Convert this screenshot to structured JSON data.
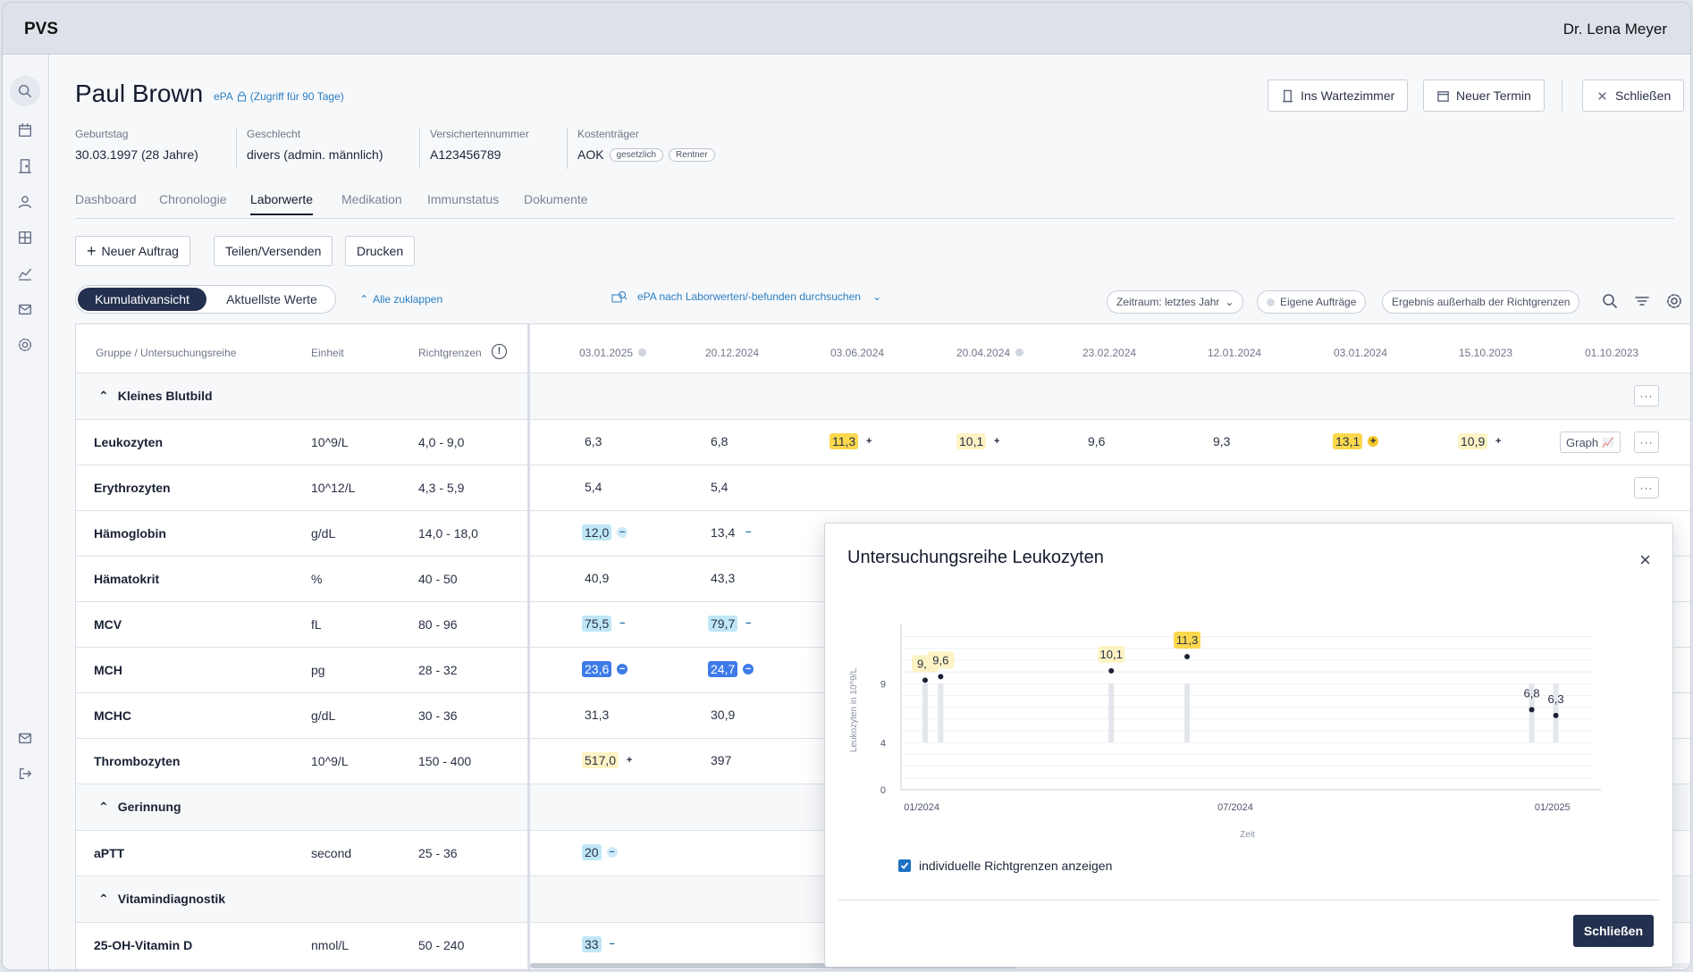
{
  "app": {
    "name": "PVS",
    "user": "Dr. Lena Meyer"
  },
  "patient": {
    "name": "Paul Brown",
    "epa_label": "ePA",
    "epa_access": "(Zugriff für 90 Tage)",
    "fields": [
      {
        "label": "Geburtstag",
        "value": "30.03.1997 (28 Jahre)"
      },
      {
        "label": "Geschlecht",
        "value": "divers (admin. männlich)"
      },
      {
        "label": "Versichertennummer",
        "value": "A123456789"
      },
      {
        "label": "Kostenträger",
        "value": "AOK",
        "badges": [
          "gesetzlich",
          "Rentner"
        ]
      }
    ]
  },
  "header_buttons": {
    "waiting": "Ins Wartezimmer",
    "appointment": "Neuer Termin",
    "close": "Schließen"
  },
  "tabs": [
    "Dashboard",
    "Chronologie",
    "Laborwerte",
    "Medikation",
    "Immunstatus",
    "Dokumente"
  ],
  "active_tab": "Laborwerte",
  "actions": {
    "new_order": "Neuer Auftrag",
    "share": "Teilen/Versenden",
    "print": "Drucken"
  },
  "view_toggle": {
    "cumulative": "Kumulativansicht",
    "latest": "Aktuellste Werte",
    "collapse_all": "Alle zuklappen"
  },
  "epa_search": "ePA nach Laborwerten/-befunden durchsuchen",
  "filters": {
    "period": "Zeitraum: letztes Jahr",
    "own_orders": "Eigene Aufträge",
    "out_of_range": "Ergebnis außerhalb der Richtgrenzen"
  },
  "table": {
    "headers": {
      "group": "Gruppe / Untersuchungsreihe",
      "unit": "Einheit",
      "range": "Richtgrenzen"
    },
    "dates": [
      "03.01.2025",
      "20.12.2024",
      "03.06.2024",
      "20.04.2024",
      "23.02.2024",
      "12.01.2024",
      "03.01.2024",
      "15.10.2023",
      "01.10.2023"
    ],
    "graph_label": "Graph",
    "more_label": "···",
    "groups": {
      "blood": "Kleines Blutbild",
      "coag": "Gerinnung",
      "vit": "Vitamindiagnostik"
    },
    "rows": [
      {
        "name": "Leukozyten",
        "unit": "10^9/L",
        "range": "4,0 - 9,0",
        "v": [
          "6,3",
          "6,8",
          "11,3",
          "10,1",
          "9,6",
          "9,3",
          "13,1",
          "10,9"
        ]
      },
      {
        "name": "Erythrozyten",
        "unit": "10^12/L",
        "range": "4,3 - 5,9",
        "v": [
          "5,4",
          "5,4"
        ]
      },
      {
        "name": "Hämoglobin",
        "unit": "g/dL",
        "range": "14,0 - 18,0",
        "v": [
          "12,0",
          "13,4"
        ]
      },
      {
        "name": "Hämatokrit",
        "unit": "%",
        "range": "40 - 50",
        "v": [
          "40,9",
          "43,3"
        ]
      },
      {
        "name": "MCV",
        "unit": "fL",
        "range": "80 - 96",
        "v": [
          "75,5",
          "79,7"
        ]
      },
      {
        "name": "MCH",
        "unit": "pg",
        "range": "28 - 32",
        "v": [
          "23,6",
          "24,7"
        ]
      },
      {
        "name": "MCHC",
        "unit": "g/dL",
        "range": "30 - 36",
        "v": [
          "31,3",
          "30,9"
        ]
      },
      {
        "name": "Thrombozyten",
        "unit": "10^9/L",
        "range": "150 - 400",
        "v": [
          "517,0",
          "397"
        ]
      },
      {
        "name": "aPTT",
        "unit": "second",
        "range": "25 - 36",
        "v": [
          "20"
        ]
      },
      {
        "name": "25-OH-Vitamin D",
        "unit": "nmol/L",
        "range": "50 - 240",
        "v": [
          "33"
        ]
      }
    ]
  },
  "modal": {
    "title": "Untersuchungsreihe Leukozyten",
    "checkbox": "individuelle Richtgrenzen anzeigen",
    "close": "Schließen"
  },
  "chart_data": {
    "type": "scatter",
    "title": "Untersuchungsreihe Leukozyten",
    "xlabel": "Zeit",
    "ylabel": "Leukozyten in 10^9/L",
    "yticks": [
      "0",
      "4",
      "9"
    ],
    "xticks": [
      "01/2024",
      "07/2024",
      "01/2025"
    ],
    "points": [
      {
        "date": "2024-01-03",
        "value": 9.3,
        "label": "9,3",
        "ref": [
          4,
          9
        ]
      },
      {
        "date": "2024-01-12",
        "value": 9.6,
        "label": "9,6",
        "ref": [
          4,
          9
        ]
      },
      {
        "date": "2024-04-20",
        "value": 10.1,
        "label": "10,1",
        "ref": [
          4,
          9
        ]
      },
      {
        "date": "2024-06-03",
        "value": 11.3,
        "label": "11,3",
        "ref": [
          4,
          9
        ]
      },
      {
        "date": "2024-12-20",
        "value": 6.8,
        "label": "6,8",
        "ref": [
          4,
          9
        ]
      },
      {
        "date": "2025-01-03",
        "value": 6.3,
        "label": "6,3",
        "ref": [
          4,
          9
        ]
      }
    ],
    "colors": {
      "high_soft": "#fdf3c4",
      "high_strong": "#fbd84d"
    }
  }
}
